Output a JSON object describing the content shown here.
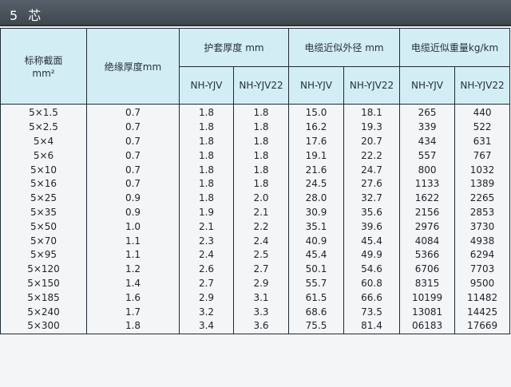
{
  "title": "5 芯",
  "headers": {
    "section": "标称截面",
    "section_unit": "mm²",
    "insulation": "绝缘厚度mm",
    "sheath": "护套厚度 mm",
    "diameter": "电缆近似外径  mm",
    "weight": "电缆近似重量kg/km",
    "sub": [
      "NH-YJV",
      "NH-YJV22",
      "NH-YJV",
      "NH-YJV22",
      "NH-YJV",
      "NH-YJV22"
    ]
  },
  "rows": [
    [
      "5×1.5",
      "0.7",
      "1.8",
      "1.8",
      "15.0",
      "18.1",
      "265",
      "440"
    ],
    [
      "5×2.5",
      "0.7",
      "1.8",
      "1.8",
      "16.2",
      "19.3",
      "339",
      "522"
    ],
    [
      "5×4",
      "0.7",
      "1.8",
      "1.8",
      "17.6",
      "20.7",
      "434",
      "631"
    ],
    [
      "5×6",
      "0.7",
      "1.8",
      "1.8",
      "19.1",
      "22.2",
      "557",
      "767"
    ],
    [
      "5×10",
      "0.7",
      "1.8",
      "1.8",
      "21.6",
      "24.7",
      "800",
      "1032"
    ],
    [
      "5×16",
      "0.7",
      "1.8",
      "1.8",
      "24.5",
      "27.6",
      "1133",
      "1389"
    ],
    [
      "5×25",
      "0.9",
      "1.8",
      "2.0",
      "28.0",
      "32.7",
      "1622",
      "2265"
    ],
    [
      "5×35",
      "0.9",
      "1.9",
      "2.1",
      "30.9",
      "35.6",
      "2156",
      "2853"
    ],
    [
      "5×50",
      "1.0",
      "2.1",
      "2.2",
      "35.1",
      "39.6",
      "2976",
      "3730"
    ],
    [
      "5×70",
      "1.1",
      "2.3",
      "2.4",
      "40.9",
      "45.4",
      "4084",
      "4938"
    ],
    [
      "5×95",
      "1.1",
      "2.4",
      "2.5",
      "45.4",
      "49.9",
      "5366",
      "6294"
    ],
    [
      "5×120",
      "1.2",
      "2.6",
      "2.7",
      "50.1",
      "54.6",
      "6706",
      "7703"
    ],
    [
      "5×150",
      "1.4",
      "2.7",
      "2.9",
      "55.7",
      "60.8",
      "8315",
      "9500"
    ],
    [
      "5×185",
      "1.6",
      "2.9",
      "3.1",
      "61.5",
      "66.6",
      "10199",
      "11482"
    ],
    [
      "5×240",
      "1.7",
      "3.2",
      "3.3",
      "68.6",
      "73.5",
      "13081",
      "14425"
    ],
    [
      "5×300",
      "1.8",
      "3.4",
      "3.6",
      "75.5",
      "81.4",
      "06183",
      "17669"
    ]
  ]
}
